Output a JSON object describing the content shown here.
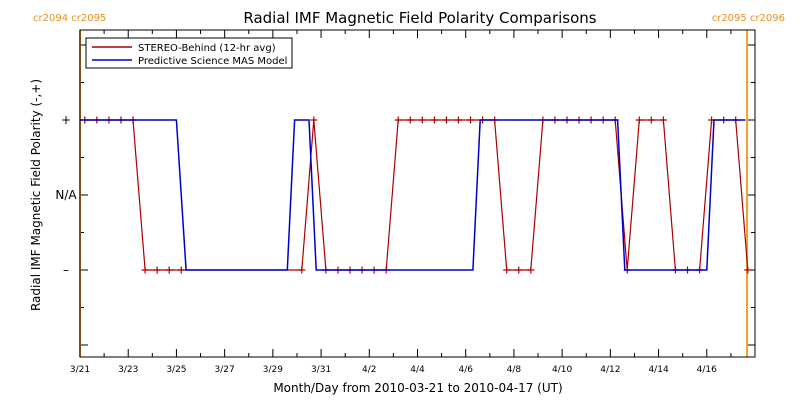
{
  "chart_data": {
    "type": "line",
    "title": "Radial IMF Magnetic Field Polarity Comparisons",
    "xlabel": "Month/Day from 2010-03-21 to 2010-04-17 (UT)",
    "ylabel": "Radial IMF Magnetic Field Polarity (-,+)",
    "xlim": [
      "2010-03-21",
      "2010-04-18"
    ],
    "x_tick_labels": [
      "3/21",
      "3/23",
      "3/25",
      "3/27",
      "3/29",
      "3/31",
      "4/2",
      "4/4",
      "4/6",
      "4/8",
      "4/10",
      "4/12",
      "4/14",
      "4/16"
    ],
    "y_tick_labels": [
      "+",
      "N/A",
      "–"
    ],
    "carrington_markers": [
      {
        "date": "2010-03-21",
        "label": "cr2094 cr2095"
      },
      {
        "date": "2010-04-17.67",
        "label": "cr2095 cr2096"
      }
    ],
    "legend_placement": "top-left",
    "series": [
      {
        "name": "STEREO-Behind (12-hr avg)",
        "color": "#aa0000",
        "marker": "plus",
        "points": [
          [
            "2010-03-21.2",
            "+"
          ],
          [
            "2010-03-21.7",
            "+"
          ],
          [
            "2010-03-22.2",
            "+"
          ],
          [
            "2010-03-22.7",
            "+"
          ],
          [
            "2010-03-23.2",
            "+"
          ],
          [
            "2010-03-23.7",
            "-"
          ],
          [
            "2010-03-24.2",
            "-"
          ],
          [
            "2010-03-24.7",
            "-"
          ],
          [
            "2010-03-25.2",
            "-"
          ],
          [
            "2010-03-30.2",
            "-"
          ],
          [
            "2010-03-30.7",
            "+"
          ],
          [
            "2010-03-31.2",
            "-"
          ],
          [
            "2010-03-31.7",
            "-"
          ],
          [
            "2010-04-01.2",
            "-"
          ],
          [
            "2010-04-01.7",
            "-"
          ],
          [
            "2010-04-02.2",
            "-"
          ],
          [
            "2010-04-02.7",
            "-"
          ],
          [
            "2010-04-03.2",
            "+"
          ],
          [
            "2010-04-03.7",
            "+"
          ],
          [
            "2010-04-04.2",
            "+"
          ],
          [
            "2010-04-04.7",
            "+"
          ],
          [
            "2010-04-05.2",
            "+"
          ],
          [
            "2010-04-05.7",
            "+"
          ],
          [
            "2010-04-06.2",
            "+"
          ],
          [
            "2010-04-06.7",
            "+"
          ],
          [
            "2010-04-07.2",
            "+"
          ],
          [
            "2010-04-07.7",
            "-"
          ],
          [
            "2010-04-08.2",
            "-"
          ],
          [
            "2010-04-08.7",
            "-"
          ],
          [
            "2010-04-09.2",
            "+"
          ],
          [
            "2010-04-09.7",
            "+"
          ],
          [
            "2010-04-10.2",
            "+"
          ],
          [
            "2010-04-10.7",
            "+"
          ],
          [
            "2010-04-11.2",
            "+"
          ],
          [
            "2010-04-11.7",
            "+"
          ],
          [
            "2010-04-12.2",
            "+"
          ],
          [
            "2010-04-12.7",
            "-"
          ],
          [
            "2010-04-13.2",
            "+"
          ],
          [
            "2010-04-13.7",
            "+"
          ],
          [
            "2010-04-14.2",
            "+"
          ],
          [
            "2010-04-14.7",
            "-"
          ],
          [
            "2010-04-15.2",
            "-"
          ],
          [
            "2010-04-15.7",
            "-"
          ],
          [
            "2010-04-16.2",
            "+"
          ],
          [
            "2010-04-16.7",
            "+"
          ],
          [
            "2010-04-17.2",
            "+"
          ],
          [
            "2010-04-17.7",
            "-"
          ]
        ]
      },
      {
        "name": "Predictive Science MAS Model",
        "color": "#0000cc",
        "marker": "none",
        "points": [
          [
            "2010-03-21.0",
            "+"
          ],
          [
            "2010-03-25.0",
            "+"
          ],
          [
            "2010-03-25.4",
            "-"
          ],
          [
            "2010-03-29.6",
            "-"
          ],
          [
            "2010-03-29.9",
            "+"
          ],
          [
            "2010-03-30.5",
            "+"
          ],
          [
            "2010-03-30.8",
            "-"
          ],
          [
            "2010-04-06.3",
            "-"
          ],
          [
            "2010-04-06.6",
            "+"
          ],
          [
            "2010-04-12.3",
            "+"
          ],
          [
            "2010-04-12.6",
            "-"
          ],
          [
            "2010-04-16.0",
            "-"
          ],
          [
            "2010-04-16.3",
            "+"
          ],
          [
            "2010-04-17.6",
            "+"
          ]
        ]
      }
    ]
  }
}
